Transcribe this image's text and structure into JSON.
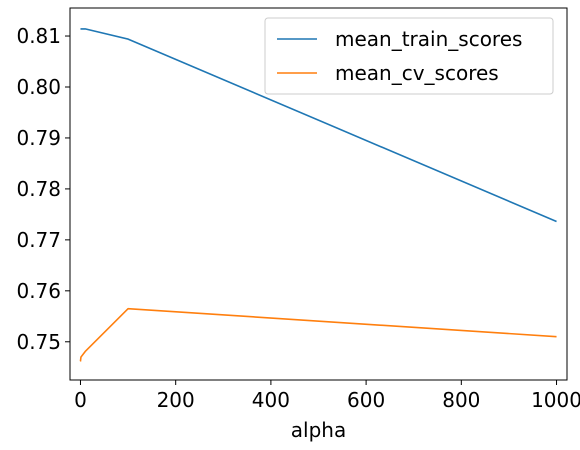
{
  "chart_data": {
    "type": "line",
    "title": "",
    "xlabel": "alpha",
    "ylabel": "",
    "xlim": [
      -22,
      1022
    ],
    "ylim": [
      0.7425,
      0.8155
    ],
    "xticks": [
      0,
      200,
      400,
      600,
      800,
      1000
    ],
    "xtick_labels": [
      "0",
      "200",
      "400",
      "600",
      "800",
      "1000"
    ],
    "yticks": [
      0.75,
      0.76,
      0.77,
      0.78,
      0.79,
      0.8,
      0.81
    ],
    "ytick_labels": [
      "0.75",
      "0.76",
      "0.77",
      "0.78",
      "0.79",
      "0.80",
      "0.81"
    ],
    "grid": false,
    "legend_position": "top-right",
    "series": [
      {
        "name": "mean_train_scores",
        "color": "#1f77b4",
        "x": [
          0.001,
          0.01,
          0.1,
          1,
          10,
          100,
          1000
        ],
        "y": [
          0.8114,
          0.8114,
          0.8114,
          0.8114,
          0.8114,
          0.8094,
          0.7736
        ]
      },
      {
        "name": "mean_cv_scores",
        "color": "#ff7f0e",
        "x": [
          0.001,
          0.01,
          0.1,
          1,
          10,
          100,
          1000
        ],
        "y": [
          0.7462,
          0.7462,
          0.7463,
          0.747,
          0.7481,
          0.7565,
          0.751
        ]
      }
    ]
  }
}
